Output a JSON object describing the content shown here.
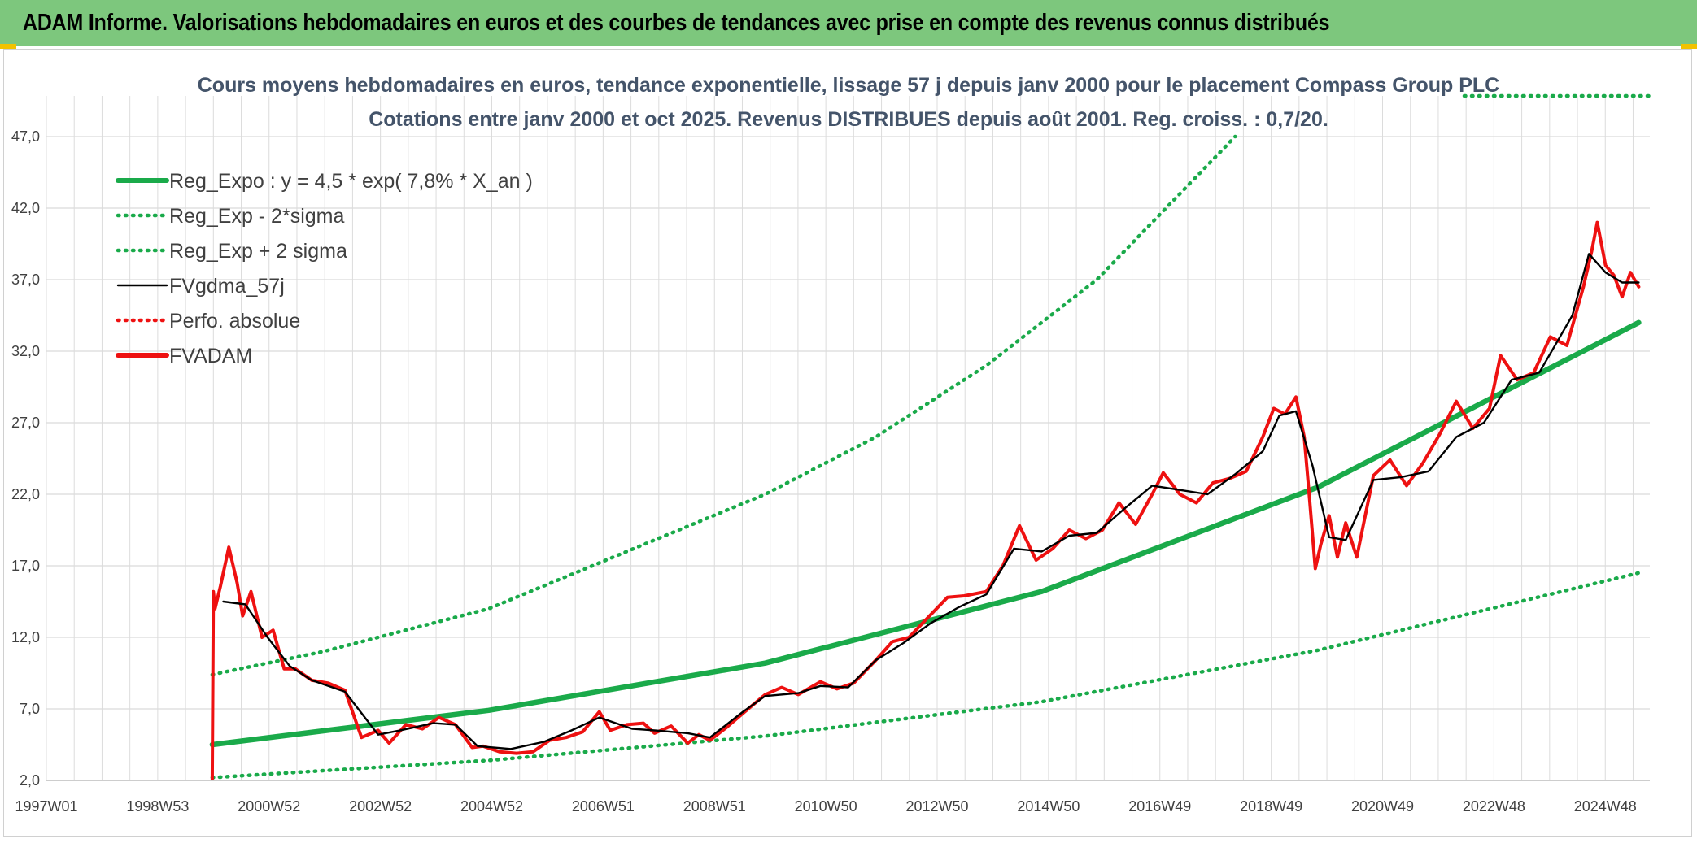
{
  "header": {
    "title": "ADAM Informe. Valorisations hebdomadaires en euros et des courbes de tendances avec prise en compte des revenus connus distribués"
  },
  "colors": {
    "header_bg": "#7dc77d",
    "trend": "#1aaa4a",
    "price": "#ee1111",
    "smooth": "#000000",
    "title": "#44546a"
  },
  "chart_data": {
    "type": "line",
    "title": "Cours moyens hebdomadaires en euros, tendance exponentielle, lissage 57 j depuis janv 2000 pour le placement Compass Group PLC",
    "subtitle": "Cotations entre janv 2000 et oct 2025. Revenus DISTRIBUES depuis août 2001. Reg. croiss. : 0,7/20.",
    "xlabel": "",
    "ylabel": "",
    "xlim": [
      1997.0,
      2026.0
    ],
    "ylim": [
      2.0,
      47.0
    ],
    "y_ticks": [
      "2,0",
      "7,0",
      "12,0",
      "17,0",
      "22,0",
      "27,0",
      "32,0",
      "37,0",
      "42,0",
      "47,0"
    ],
    "x_ticks": [
      "1997W01",
      "1998W53",
      "2000W52",
      "2002W52",
      "2004W52",
      "2006W51",
      "2008W51",
      "2010W50",
      "2012W50",
      "2014W50",
      "2016W49",
      "2018W49",
      "2020W49",
      "2022W48",
      "2024W48"
    ],
    "grid": true,
    "legend_position": "top-left",
    "series": [
      {
        "name": "Reg_Expo : y = 4,5 * exp( 7,8% *  X_an )",
        "style": "solid-thick",
        "color": "#1aaa4a",
        "x": [
          2000.0,
          2005.0,
          2010.0,
          2015.0,
          2020.0,
          2025.8
        ],
        "y": [
          4.5,
          6.9,
          10.2,
          15.2,
          22.5,
          34.0
        ]
      },
      {
        "name": "Reg_Exp - 2*sigma",
        "style": "dotted",
        "color": "#1aaa4a",
        "x": [
          2000.0,
          2005.0,
          2010.0,
          2015.0,
          2020.0,
          2025.8
        ],
        "y": [
          2.2,
          3.4,
          5.1,
          7.5,
          11.1,
          16.5
        ]
      },
      {
        "name": "Reg_Exp + 2 sigma",
        "style": "dotted",
        "color": "#1aaa4a",
        "x": [
          2000.0,
          2002.0,
          2005.0,
          2008.0,
          2010.0,
          2012.0,
          2014.0,
          2016.0,
          2018.5
        ],
        "y": [
          9.4,
          11.0,
          14.0,
          18.8,
          22.0,
          26.0,
          31.0,
          37.0,
          47.0
        ]
      },
      {
        "name": "FVgdma_57j",
        "style": "solid",
        "color": "#000000",
        "x": [
          2000.2,
          2000.6,
          2001.0,
          2001.4,
          2001.8,
          2002.4,
          2003.0,
          2003.4,
          2004.0,
          2004.4,
          2004.8,
          2005.4,
          2006.0,
          2006.5,
          2007.0,
          2007.6,
          2008.0,
          2008.6,
          2009.0,
          2009.6,
          2010.0,
          2010.6,
          2011.0,
          2011.5,
          2012.0,
          2012.5,
          2013.0,
          2013.5,
          2014.0,
          2014.5,
          2015.0,
          2015.5,
          2016.0,
          2016.5,
          2017.0,
          2017.5,
          2018.0,
          2018.5,
          2019.0,
          2019.3,
          2019.6,
          2019.9,
          2020.2,
          2020.5,
          2021.0,
          2021.5,
          2022.0,
          2022.5,
          2023.0,
          2023.5,
          2024.0,
          2024.3,
          2024.6,
          2024.9,
          2025.2,
          2025.5,
          2025.8
        ],
        "y": [
          14.5,
          14.3,
          12.0,
          10.0,
          9.0,
          8.2,
          5.2,
          5.5,
          6.0,
          5.9,
          4.4,
          4.2,
          4.7,
          5.5,
          6.4,
          5.6,
          5.5,
          5.3,
          5.0,
          6.8,
          7.9,
          8.1,
          8.6,
          8.5,
          10.4,
          11.6,
          13.0,
          14.1,
          15.0,
          18.2,
          18.0,
          19.1,
          19.3,
          21.0,
          22.6,
          22.3,
          22.0,
          23.4,
          25.0,
          27.5,
          27.8,
          24.0,
          19.0,
          18.8,
          23.0,
          23.2,
          23.6,
          26.0,
          27.0,
          30.0,
          30.5,
          32.5,
          34.5,
          38.8,
          37.5,
          36.8,
          36.8
        ]
      },
      {
        "name": "Perfo. absolue",
        "style": "dotted",
        "color": "#ee1111",
        "x": [],
        "y": []
      },
      {
        "name": "FVADAM",
        "style": "solid-thick",
        "color": "#ee1111",
        "x": [
          2000.0,
          2000.02,
          2000.05,
          2000.15,
          2000.3,
          2000.45,
          2000.55,
          2000.7,
          2000.9,
          2001.1,
          2001.3,
          2001.5,
          2001.8,
          2002.1,
          2002.4,
          2002.7,
          2003.0,
          2003.2,
          2003.5,
          2003.8,
          2004.1,
          2004.4,
          2004.7,
          2004.9,
          2005.2,
          2005.5,
          2005.8,
          2006.1,
          2006.4,
          2006.7,
          2007.0,
          2007.2,
          2007.5,
          2007.8,
          2008.0,
          2008.3,
          2008.6,
          2008.8,
          2009.0,
          2009.3,
          2009.6,
          2010.0,
          2010.3,
          2010.6,
          2011.0,
          2011.3,
          2011.6,
          2012.0,
          2012.3,
          2012.6,
          2013.0,
          2013.3,
          2013.6,
          2014.0,
          2014.3,
          2014.6,
          2014.9,
          2015.2,
          2015.5,
          2015.8,
          2016.1,
          2016.4,
          2016.7,
          2017.0,
          2017.2,
          2017.5,
          2017.8,
          2018.1,
          2018.4,
          2018.7,
          2019.0,
          2019.2,
          2019.4,
          2019.6,
          2019.75,
          2019.85,
          2019.95,
          2020.05,
          2020.2,
          2020.35,
          2020.5,
          2020.7,
          2021.0,
          2021.3,
          2021.6,
          2021.9,
          2022.2,
          2022.5,
          2022.8,
          2023.1,
          2023.3,
          2023.6,
          2023.9,
          2024.2,
          2024.5,
          2024.8,
          2024.95,
          2025.05,
          2025.2,
          2025.35,
          2025.5,
          2025.65,
          2025.8
        ],
        "y": [
          2.0,
          15.2,
          14.0,
          15.6,
          18.3,
          15.8,
          13.5,
          15.2,
          12.0,
          12.5,
          9.8,
          9.8,
          9.0,
          8.8,
          8.3,
          5.0,
          5.5,
          4.6,
          5.9,
          5.6,
          6.4,
          5.9,
          4.3,
          4.4,
          4.0,
          3.9,
          4.0,
          4.8,
          5.0,
          5.4,
          6.8,
          5.5,
          5.9,
          6.0,
          5.3,
          5.8,
          4.6,
          5.2,
          4.8,
          5.7,
          6.7,
          8.0,
          8.5,
          8.0,
          8.9,
          8.4,
          8.8,
          10.4,
          11.7,
          12.0,
          13.6,
          14.8,
          14.9,
          15.2,
          17.0,
          19.8,
          17.4,
          18.2,
          19.5,
          18.9,
          19.5,
          21.4,
          19.9,
          22.0,
          23.5,
          22.0,
          21.4,
          22.8,
          23.1,
          23.6,
          26.0,
          28.0,
          27.6,
          28.8,
          26.0,
          21.5,
          16.8,
          18.5,
          20.5,
          17.6,
          20.0,
          17.6,
          23.3,
          24.4,
          22.6,
          24.2,
          26.2,
          28.5,
          26.6,
          28.0,
          31.7,
          30.0,
          30.5,
          33.0,
          32.4,
          36.5,
          39.0,
          41.0,
          38.0,
          37.3,
          35.8,
          37.5,
          36.5
        ]
      }
    ]
  }
}
